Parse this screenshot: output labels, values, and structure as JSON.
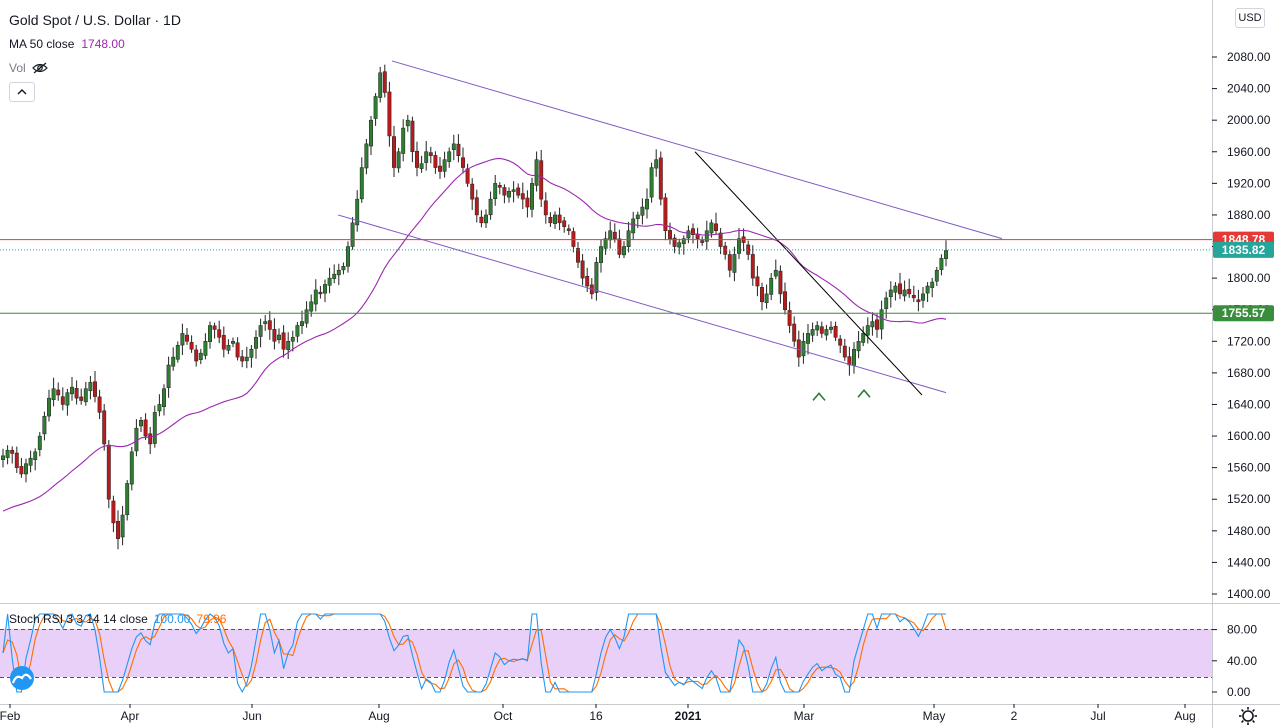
{
  "legend": {
    "title": "Gold Spot / U.S. Dollar · 1D",
    "ma_label": "MA 50 close",
    "ma_value": "1748.00",
    "vol_label": "Vol",
    "ma_color": "#9c27b0"
  },
  "stoch_legend": {
    "label": "Stoch RSI 3 3 14 14 close",
    "k_value": "100.00",
    "d_value": "79.96",
    "k_color": "#2196f3",
    "d_color": "#ff6d00"
  },
  "currency": "USD",
  "icons": {
    "eye": "eye-off-icon",
    "collapse": "chevron-up-icon",
    "logo": "tradingview-cloud-icon",
    "settings": "gear-icon"
  },
  "chart_data": {
    "type": "candlestick",
    "title": "Gold Spot / U.S. Dollar · 1D",
    "price_axis": {
      "ylim": [
        1390,
        2140
      ],
      "ticks": [
        "2080.00",
        "2040.00",
        "2000.00",
        "1960.00",
        "1920.00",
        "1880.00",
        "1840.00",
        "1800.00",
        "1760.00",
        "1720.00",
        "1680.00",
        "1640.00",
        "1600.00",
        "1560.00",
        "1520.00",
        "1480.00",
        "1440.00",
        "1400.00"
      ]
    },
    "time_axis": {
      "ticks": [
        "Feb",
        "Apr",
        "Jun",
        "Aug",
        "Oct",
        "16",
        "2021",
        "Mar",
        "May",
        "2",
        "Jul",
        "Aug"
      ]
    },
    "price_labels": [
      {
        "value": "1848.78",
        "color": "#e53935",
        "style": "solid"
      },
      {
        "value": "1835.82",
        "color": "#26a69a",
        "style": "dotted"
      },
      {
        "value": "1755.57",
        "color": "#388e3c",
        "style": "solid"
      }
    ],
    "candles_close": [
      1575,
      1582,
      1578,
      1560,
      1552,
      1565,
      1572,
      1580,
      1600,
      1625,
      1648,
      1660,
      1652,
      1640,
      1655,
      1662,
      1648,
      1645,
      1660,
      1668,
      1650,
      1630,
      1590,
      1520,
      1490,
      1470,
      1500,
      1540,
      1580,
      1610,
      1620,
      1600,
      1590,
      1630,
      1640,
      1660,
      1690,
      1700,
      1715,
      1730,
      1720,
      1710,
      1695,
      1705,
      1720,
      1740,
      1735,
      1725,
      1710,
      1715,
      1720,
      1700,
      1695,
      1700,
      1710,
      1725,
      1740,
      1745,
      1735,
      1720,
      1728,
      1710,
      1720,
      1725,
      1740,
      1745,
      1760,
      1770,
      1785,
      1780,
      1792,
      1800,
      1805,
      1810,
      1815,
      1840,
      1870,
      1900,
      1940,
      1970,
      2000,
      2030,
      2060,
      2035,
      1980,
      1940,
      1960,
      1990,
      2000,
      1960,
      1940,
      1945,
      1960,
      1955,
      1940,
      1935,
      1950,
      1960,
      1970,
      1955,
      1940,
      1920,
      1900,
      1880,
      1870,
      1880,
      1900,
      1920,
      1915,
      1905,
      1910,
      1912,
      1905,
      1900,
      1890,
      1920,
      1950,
      1900,
      1880,
      1870,
      1880,
      1870,
      1865,
      1860,
      1840,
      1820,
      1800,
      1790,
      1780,
      1820,
      1840,
      1850,
      1860,
      1850,
      1830,
      1840,
      1860,
      1875,
      1880,
      1890,
      1900,
      1940,
      1950,
      1900,
      1860,
      1850,
      1840,
      1845,
      1850,
      1860,
      1855,
      1850,
      1845,
      1860,
      1870,
      1860,
      1840,
      1830,
      1810,
      1830,
      1850,
      1845,
      1830,
      1800,
      1790,
      1770,
      1780,
      1800,
      1810,
      1780,
      1760,
      1740,
      1720,
      1700,
      1720,
      1730,
      1735,
      1740,
      1730,
      1735,
      1738,
      1725,
      1715,
      1700,
      1690,
      1710,
      1720,
      1730,
      1740,
      1745,
      1735,
      1760,
      1775,
      1785,
      1790,
      1780,
      1785,
      1780,
      1775,
      1770,
      1780,
      1790,
      1795,
      1810,
      1825,
      1835
    ],
    "series": [
      {
        "name": "MA 50 close",
        "color": "#9c27b0",
        "values_start": 1505,
        "values_end": 1748
      },
      {
        "name": "Stoch RSI %K",
        "color": "#2196f3",
        "last": 100.0
      },
      {
        "name": "Stoch RSI %D",
        "color": "#ff6d00",
        "last": 79.96
      }
    ],
    "stoch_axis": {
      "ylim": [
        0,
        100
      ],
      "ticks": [
        "80.00",
        "40.00",
        "0.00"
      ]
    },
    "trendlines": [
      {
        "from": [
          "Aug",
          2075
        ],
        "to": [
          "May",
          1850
        ],
        "color": "#7e57c2"
      },
      {
        "from": [
          "Jul",
          1880
        ],
        "to": [
          "May",
          1655
        ],
        "color": "#7e57c2"
      },
      {
        "from": [
          "Jan",
          1960
        ],
        "to": [
          "May",
          1652
        ],
        "color": "#000000"
      }
    ],
    "markers": [
      {
        "type": "caret-up",
        "at": "Mar",
        "value": 1668,
        "color": "#2e7d32"
      },
      {
        "type": "caret-up",
        "at": "Mar",
        "value": 1672,
        "color": "#2e7d32"
      }
    ]
  }
}
